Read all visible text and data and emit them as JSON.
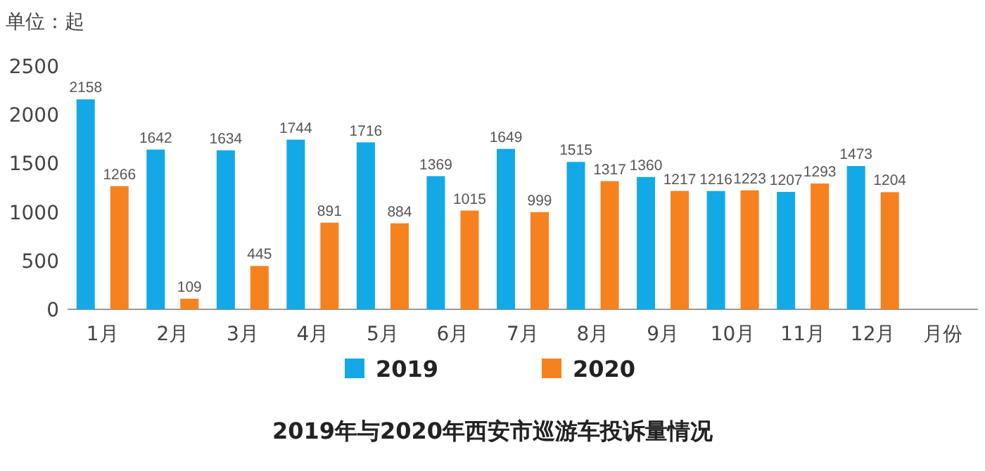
{
  "chart_data": {
    "type": "bar",
    "title": "2019年与2020年西安市巡游车投诉量情况",
    "ylabel": "单位：起",
    "xlabel": "月份",
    "categories": [
      "1月",
      "2月",
      "3月",
      "4月",
      "5月",
      "6月",
      "7月",
      "8月",
      "9月",
      "10月",
      "11月",
      "12月"
    ],
    "series": [
      {
        "name": "2019",
        "color": "#13a9e6",
        "values": [
          2158,
          1642,
          1634,
          1744,
          1716,
          1369,
          1649,
          1515,
          1360,
          1216,
          1207,
          1473
        ]
      },
      {
        "name": "2020",
        "color": "#f5821f",
        "values": [
          1266,
          109,
          445,
          891,
          884,
          1015,
          999,
          1317,
          1217,
          1223,
          1293,
          1204
        ]
      }
    ],
    "ylim": [
      0,
      2500
    ],
    "yticks": [
      0,
      500,
      1000,
      1500,
      2000,
      2500
    ],
    "data_labels": true,
    "legend": "bottom"
  }
}
